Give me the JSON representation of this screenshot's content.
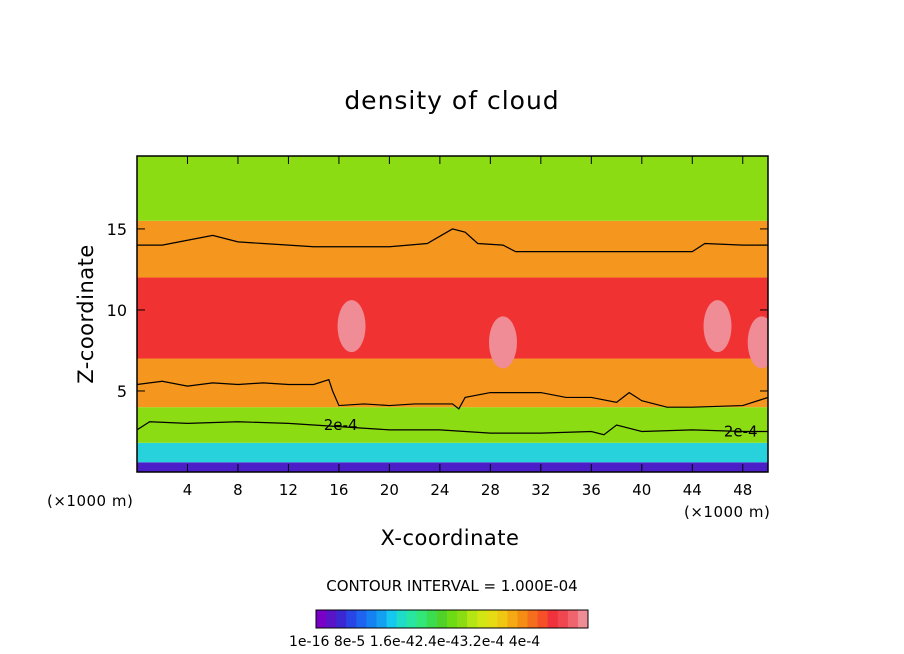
{
  "chart_data": {
    "type": "heatmap",
    "title": "density of cloud",
    "xlabel": "X-coordinate",
    "ylabel": "Z-coordinate",
    "x_unit": "(×1000 m)",
    "z_unit": "(×1000 m)",
    "xlim": [
      0,
      50
    ],
    "ylim": [
      0,
      19.5
    ],
    "x_ticks": [
      4,
      8,
      12,
      16,
      20,
      24,
      28,
      32,
      36,
      40,
      44,
      48
    ],
    "y_ticks": [
      5,
      10,
      15
    ],
    "contour_interval_text": "CONTOUR INTERVAL = 1.000E-04",
    "contour_line_label": "2e-4",
    "colorbar": {
      "colors": [
        "#7a00c8",
        "#5a14c8",
        "#3c28d2",
        "#2846e6",
        "#1e64f0",
        "#1482f0",
        "#14a0f0",
        "#14c8f0",
        "#1edcc8",
        "#28e6a0",
        "#32e678",
        "#3cdc50",
        "#50d228",
        "#6edc14",
        "#8cdc14",
        "#b4e614",
        "#d2e614",
        "#e6dc14",
        "#f0c814",
        "#f5aa14",
        "#f58c14",
        "#f56e1e",
        "#f55028",
        "#f0323c",
        "#f04650",
        "#f0646e",
        "#f08c96"
      ],
      "tick_labels_text": "1e-16 8e-5 1.6e-42.4e-43.2e-4 4e-4"
    },
    "bands": [
      {
        "zmin": 0.0,
        "zmax": 0.6,
        "level": "1e-16"
      },
      {
        "zmin": 0.6,
        "zmax": 1.8,
        "level": "8e-5"
      },
      {
        "zmin": 1.8,
        "zmax": 4.0,
        "level": "1.6e-4"
      },
      {
        "zmin": 4.0,
        "zmax": 7.0,
        "level": "2.4e-4"
      },
      {
        "zmin": 7.0,
        "zmax": 12.0,
        "level": "3.2e-4"
      },
      {
        "zmin": 12.0,
        "zmax": 15.5,
        "level": "2.4e-4"
      },
      {
        "zmin": 15.5,
        "zmax": 19.5,
        "level": "1.6e-4"
      }
    ],
    "maxima": [
      {
        "x": 17,
        "z": 9,
        "level": "4e-4"
      },
      {
        "x": 29,
        "z": 8,
        "level": "4e-4"
      },
      {
        "x": 46,
        "z": 9,
        "level": "4e-4"
      },
      {
        "x": 49.5,
        "z": 8,
        "level": "4e-4"
      }
    ],
    "contours": [
      {
        "level": "2e-4",
        "points": [
          [
            0,
            14
          ],
          [
            2,
            14
          ],
          [
            4,
            14.3
          ],
          [
            6,
            14.6
          ],
          [
            8,
            14.2
          ],
          [
            10,
            14.1
          ],
          [
            14,
            13.9
          ],
          [
            20,
            13.9
          ],
          [
            23,
            14.1
          ],
          [
            25,
            15
          ],
          [
            26,
            14.8
          ],
          [
            27,
            14.1
          ],
          [
            29,
            14
          ],
          [
            30,
            13.6
          ],
          [
            34,
            13.6
          ],
          [
            38,
            13.6
          ],
          [
            44,
            13.6
          ],
          [
            45,
            14.1
          ],
          [
            48,
            14
          ],
          [
            50,
            14
          ]
        ]
      },
      {
        "level": "2e-4",
        "points": [
          [
            0,
            5.4
          ],
          [
            2,
            5.6
          ],
          [
            4,
            5.3
          ],
          [
            6,
            5.5
          ],
          [
            8,
            5.4
          ],
          [
            10,
            5.5
          ],
          [
            12,
            5.4
          ],
          [
            14,
            5.4
          ],
          [
            15.2,
            5.7
          ],
          [
            15.5,
            5
          ],
          [
            16,
            4.1
          ],
          [
            18,
            4.2
          ],
          [
            20,
            4.1
          ],
          [
            22,
            4.2
          ],
          [
            25,
            4.2
          ],
          [
            25.5,
            3.9
          ],
          [
            26,
            4.6
          ],
          [
            28,
            4.9
          ],
          [
            32,
            4.9
          ],
          [
            34,
            4.6
          ],
          [
            36,
            4.6
          ],
          [
            38,
            4.3
          ],
          [
            39,
            4.9
          ],
          [
            40,
            4.4
          ],
          [
            42,
            4
          ],
          [
            44,
            4
          ],
          [
            48,
            4.1
          ],
          [
            50,
            4.6
          ]
        ]
      },
      {
        "level": "2e-4",
        "points": [
          [
            0,
            2.6
          ],
          [
            1,
            3.1
          ],
          [
            4,
            3
          ],
          [
            8,
            3.1
          ],
          [
            12,
            3
          ],
          [
            16,
            2.8
          ],
          [
            20,
            2.6
          ],
          [
            24,
            2.6
          ],
          [
            28,
            2.4
          ],
          [
            32,
            2.4
          ],
          [
            36,
            2.5
          ],
          [
            37,
            2.3
          ],
          [
            38,
            2.9
          ],
          [
            40,
            2.5
          ],
          [
            44,
            2.6
          ],
          [
            48,
            2.5
          ],
          [
            50,
            2.5
          ]
        ]
      }
    ]
  }
}
